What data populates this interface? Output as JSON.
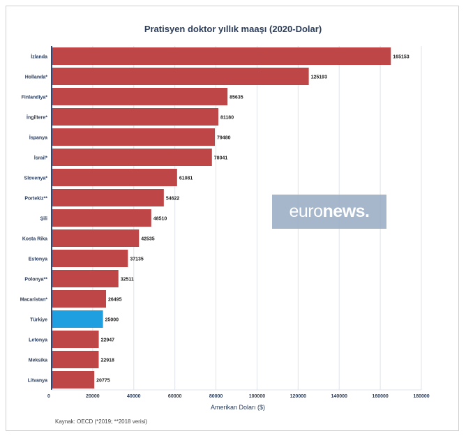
{
  "chart_data": {
    "type": "bar",
    "orientation": "horizontal",
    "title": "Pratisyen doktor yıllık maaşı (2020-Dolar)",
    "xlabel": "Amerikan Doları ($)",
    "ylabel": "",
    "categories": [
      "İzlanda",
      "Hollanda*",
      "Finlandiya*",
      "İngiltere*",
      "İspanya",
      "İsrail*",
      "Slovenya*",
      "Portekiz**",
      "Şili",
      "Kosta Rika",
      "Estonya",
      "Polonya**",
      "Macaristan*",
      "Türkiye",
      "Letonya",
      "Meksika",
      "Litvanya"
    ],
    "values": [
      165153,
      125193,
      85635,
      81180,
      79480,
      78041,
      61081,
      54622,
      48510,
      42535,
      37135,
      32511,
      26495,
      25000,
      22947,
      22918,
      20775
    ],
    "value_labels": [
      "165153",
      "125193",
      "85635",
      "81180",
      "79480",
      "78041",
      "61081",
      "54622",
      "48510",
      "42535",
      "37135",
      "32511",
      "26495",
      "25000",
      "22947",
      "22918",
      "20775"
    ],
    "highlight": "Türkiye",
    "xlim": [
      0,
      180000
    ],
    "xticks": [
      0,
      20000,
      40000,
      60000,
      80000,
      100000,
      120000,
      140000,
      160000,
      180000
    ],
    "xtick_labels": [
      "0",
      "20000",
      "40000",
      "60000",
      "80000",
      "100000",
      "120000",
      "140000",
      "160000",
      "180000"
    ],
    "grid": true,
    "colors": {
      "bar": "#bf4646",
      "highlight": "#1f9ee0",
      "grid": "#dfe3ea",
      "axis": "#2d4a7a",
      "label": "#2b3d5b"
    }
  },
  "source": "Kaynak: OECD (*2019; **2018 verisi)",
  "watermark": {
    "part1": "euro",
    "part2": "news."
  }
}
